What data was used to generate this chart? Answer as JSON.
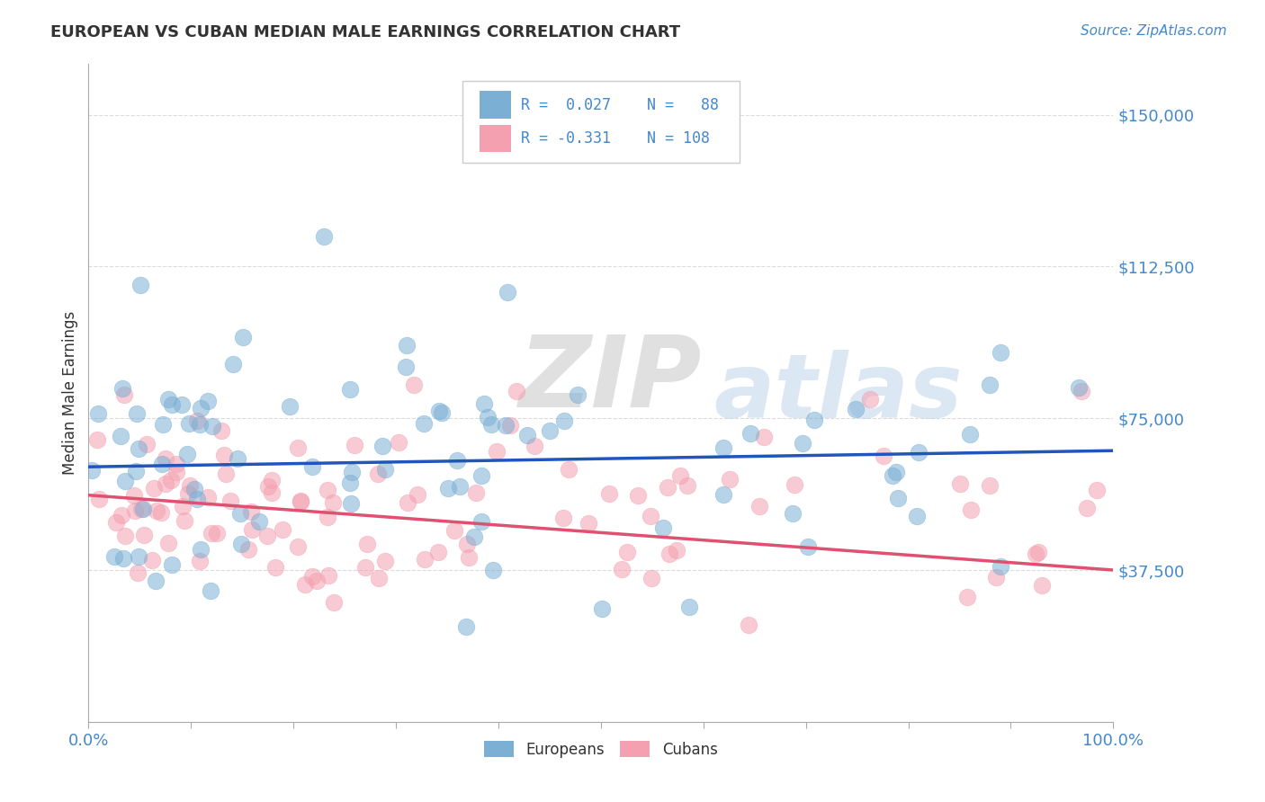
{
  "title": "EUROPEAN VS CUBAN MEDIAN MALE EARNINGS CORRELATION CHART",
  "source_text": "Source: ZipAtlas.com",
  "ylabel": "Median Male Earnings",
  "xlim": [
    0.0,
    1.0
  ],
  "ylim": [
    0,
    162500
  ],
  "yticks": [
    0,
    37500,
    75000,
    112500,
    150000
  ],
  "ytick_labels": [
    "",
    "$37,500",
    "$75,000",
    "$112,500",
    "$150,000"
  ],
  "xtick_vals": [
    0.0,
    0.1,
    0.2,
    0.3,
    0.4,
    0.5,
    0.6,
    0.7,
    0.8,
    0.9,
    1.0
  ],
  "x_start_label": "0.0%",
  "x_end_label": "100.0%",
  "european_color": "#7BAFD4",
  "cuban_color": "#F4A0B0",
  "trend_european_color": "#2255BB",
  "trend_cuban_color": "#E05070",
  "R_european": 0.027,
  "N_european": 88,
  "R_cuban": -0.331,
  "N_cuban": 108,
  "tick_color": "#4488CC",
  "ylabel_color": "#333333",
  "title_color": "#333333",
  "source_color": "#4488CC",
  "grid_color": "#CCCCCC",
  "background_color": "#FFFFFF",
  "legend_label_european": "Europeans",
  "legend_label_cuban": "Cubans",
  "eu_trend_y0": 63000,
  "eu_trend_y1": 67000,
  "cu_trend_y0": 56000,
  "cu_trend_y1": 37500,
  "seed": 123
}
